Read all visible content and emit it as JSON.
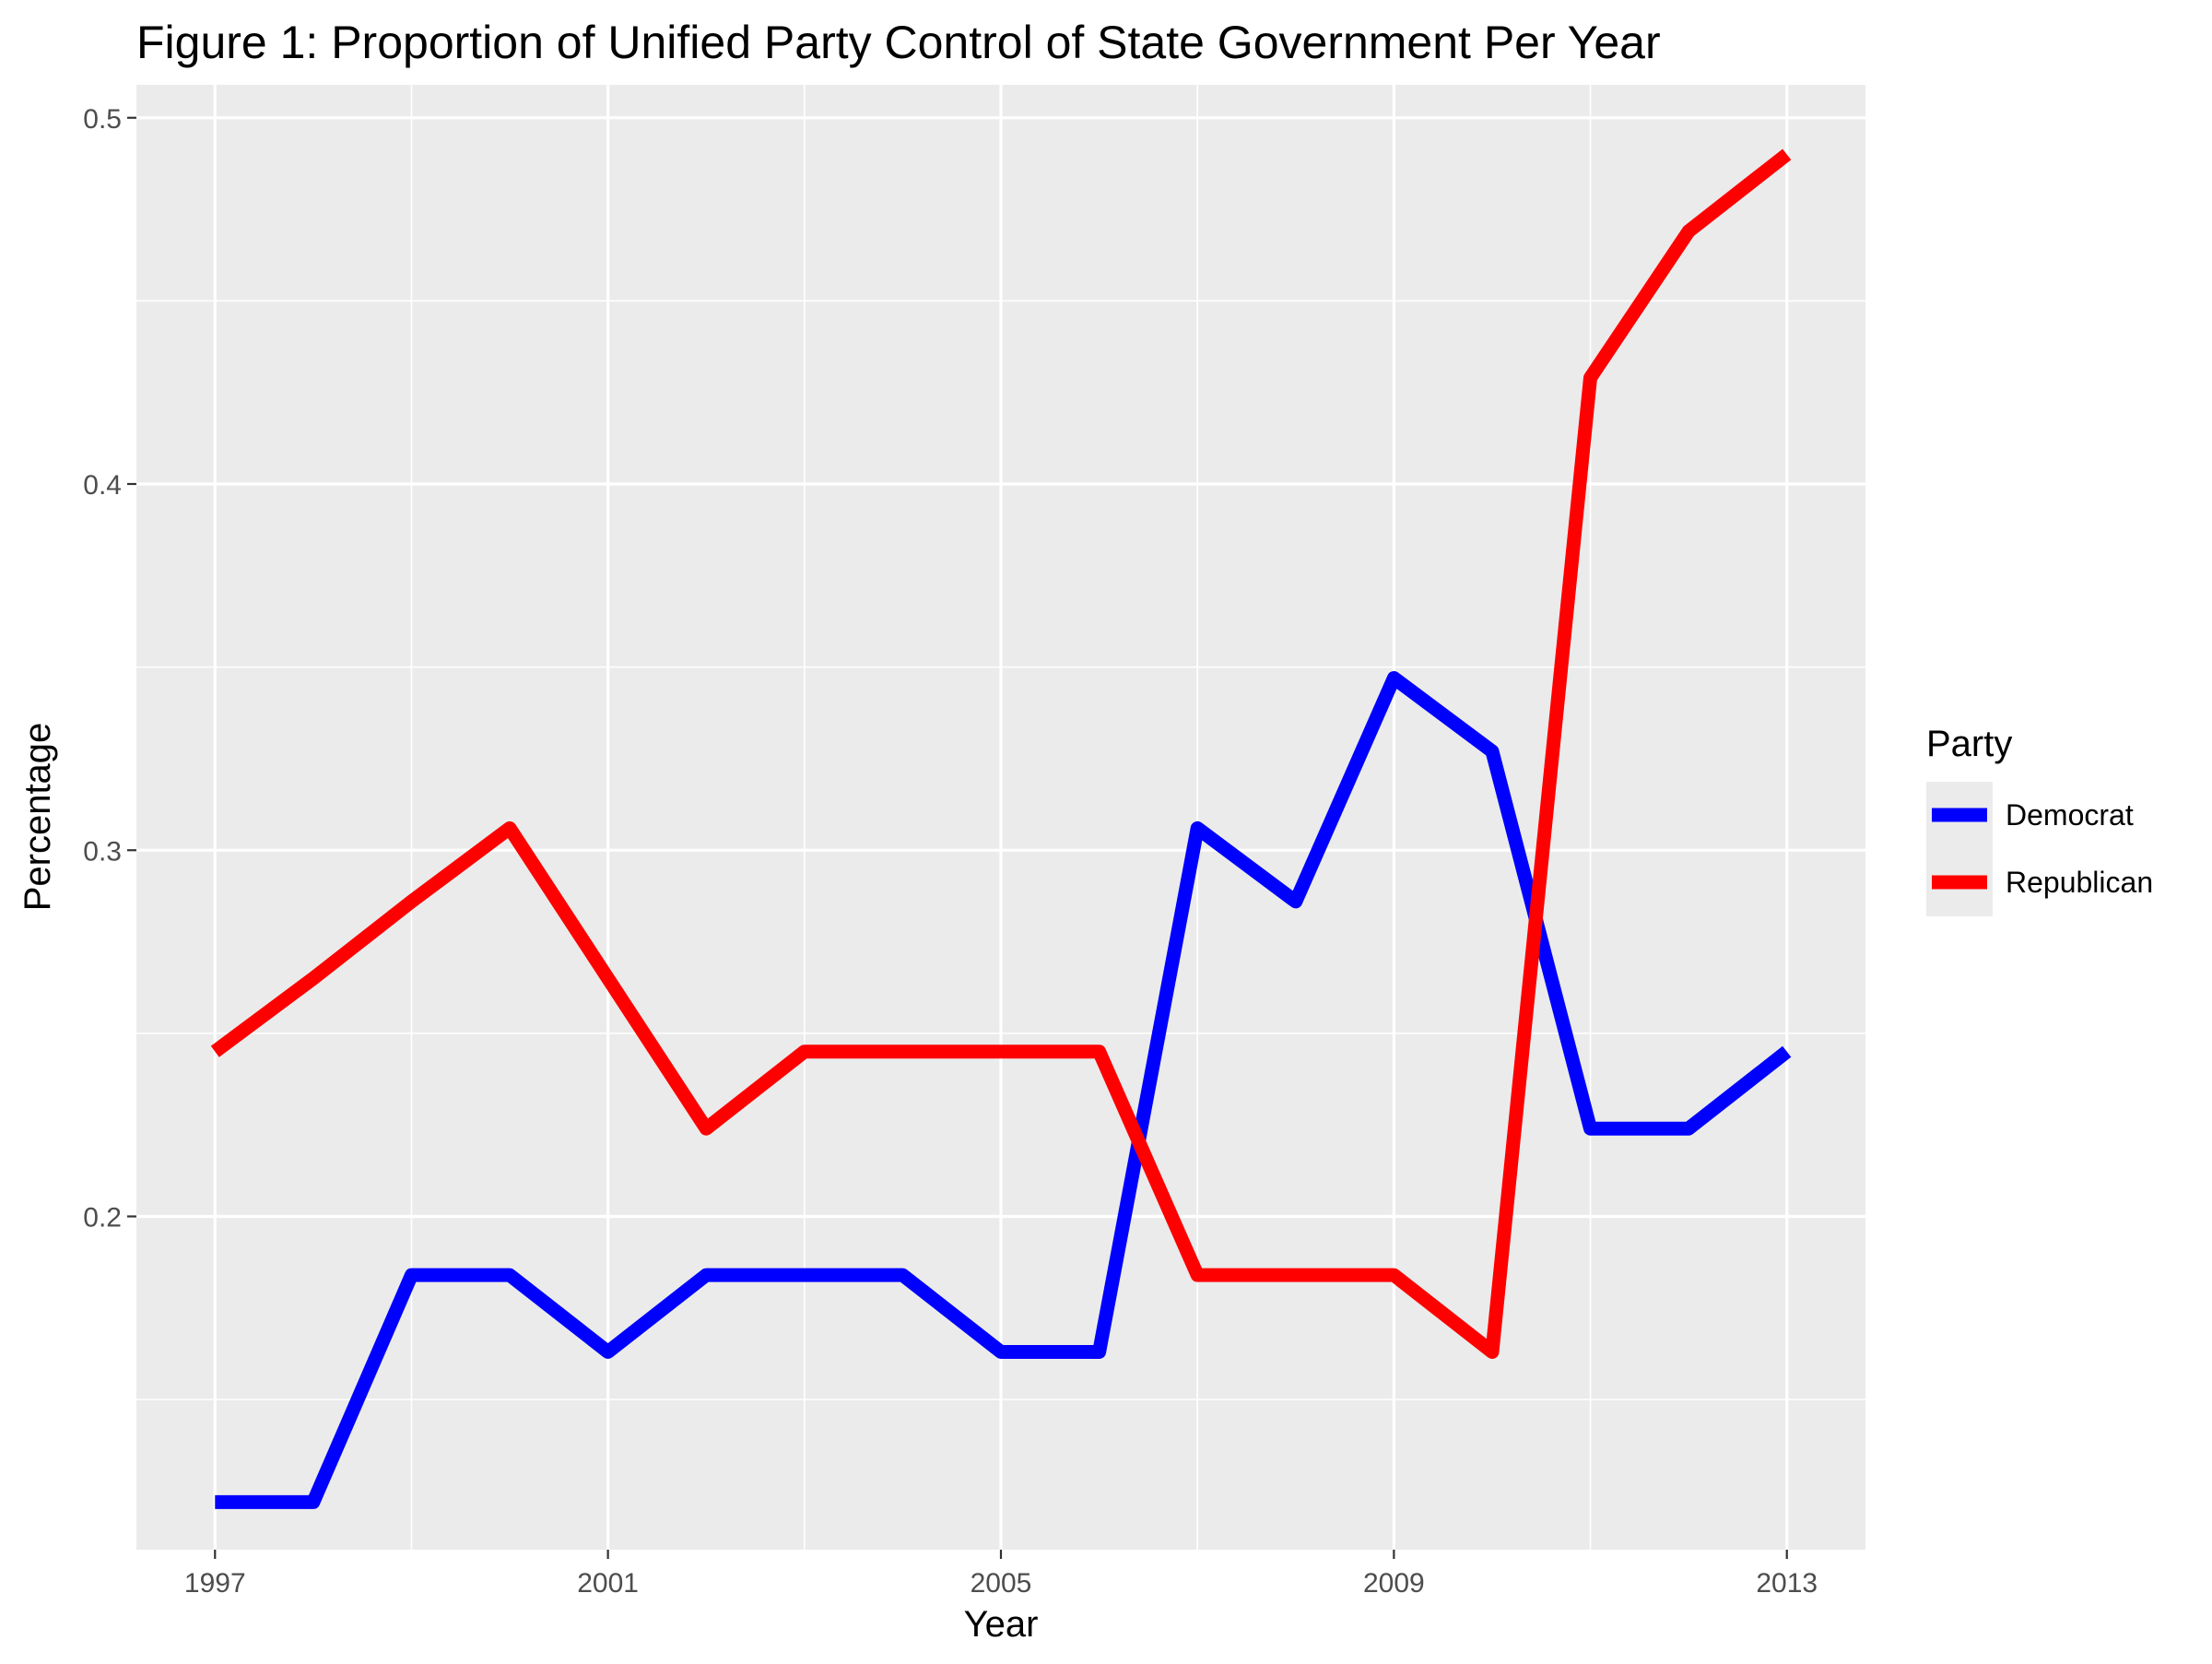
{
  "chart_data": {
    "type": "line",
    "title": "Figure 1: Proportion of Unified Party Control of State Government Per Year",
    "xlabel": "Year",
    "ylabel": "Percentage",
    "x": [
      1997,
      1998,
      1999,
      2000,
      2001,
      2002,
      2003,
      2004,
      2005,
      2006,
      2007,
      2008,
      2009,
      2010,
      2011,
      2012,
      2013
    ],
    "x_ticks": [
      "1997",
      "2001",
      "2005",
      "2009",
      "2013"
    ],
    "y_ticks": [
      "0.2",
      "0.3",
      "0.4",
      "0.5"
    ],
    "xlim": [
      1996.2,
      2013.8
    ],
    "ylim": [
      0.109,
      0.509
    ],
    "grid": true,
    "legend": {
      "title": "Party",
      "position": "right"
    },
    "series": [
      {
        "name": "Democrat",
        "color": "#0000ff",
        "values": [
          0.122,
          0.122,
          0.184,
          0.184,
          0.163,
          0.184,
          0.184,
          0.184,
          0.163,
          0.163,
          0.306,
          0.286,
          0.347,
          0.327,
          0.224,
          0.224,
          0.245
        ]
      },
      {
        "name": "Republican",
        "color": "#ff0000",
        "values": [
          0.245,
          0.265,
          0.286,
          0.306,
          0.265,
          0.224,
          0.245,
          0.245,
          0.245,
          0.245,
          0.184,
          0.184,
          0.184,
          0.163,
          0.429,
          0.469,
          0.49
        ]
      }
    ]
  }
}
